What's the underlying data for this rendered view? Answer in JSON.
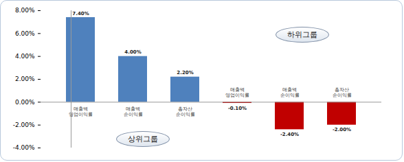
{
  "chart_data": {
    "type": "bar",
    "categories": [
      "매출액\n영업이익률",
      "매출액\n순이익률",
      "총자산\n순이익률",
      "매출액\n영업이익률",
      "매출액\n순이익률",
      "총자산\n순이익률"
    ],
    "values": [
      7.4,
      4.0,
      2.2,
      -0.1,
      -2.4,
      -2.0
    ],
    "value_labels": [
      "7.40%",
      "4.00%",
      "2.20%",
      "-0.10%",
      "-2.40%",
      "-2.00%"
    ],
    "colors": [
      "#4f81bd",
      "#4f81bd",
      "#4f81bd",
      "#c00000",
      "#c00000",
      "#c00000"
    ],
    "ylim": [
      -4,
      8
    ],
    "yticks": [
      {
        "value": -4,
        "label": "-4.00%"
      },
      {
        "value": -2,
        "label": "-2.00%"
      },
      {
        "value": 0,
        "label": "0.00%"
      },
      {
        "value": 2,
        "label": "2.00%"
      },
      {
        "value": 4,
        "label": "4.00%"
      },
      {
        "value": 6,
        "label": "6.00%"
      },
      {
        "value": 8,
        "label": "8.00%"
      }
    ],
    "grid": false,
    "data_labels": true,
    "annotations": [
      "하위그룹",
      "상위그룹"
    ]
  }
}
